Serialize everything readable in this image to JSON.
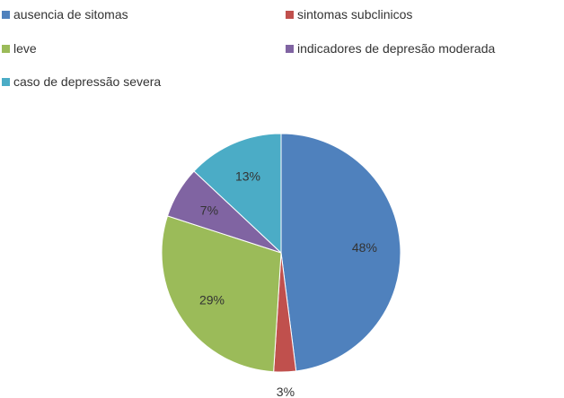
{
  "chart_data": {
    "type": "pie",
    "categories": [
      "ausencia de sitomas",
      "sintomas subclinicos",
      "leve",
      "indicadores de depresão moderada",
      "caso de depressão severa"
    ],
    "values": [
      48,
      3,
      29,
      7,
      13
    ],
    "data_labels": [
      "48%",
      "3%",
      "29%",
      "7%",
      "13%"
    ],
    "colors": [
      "#4f81bd",
      "#c0504d",
      "#9bbb59",
      "#8064a2",
      "#4bacc6"
    ],
    "legend_position": "top",
    "start_angle": "12 o'clock",
    "direction": "clockwise"
  }
}
